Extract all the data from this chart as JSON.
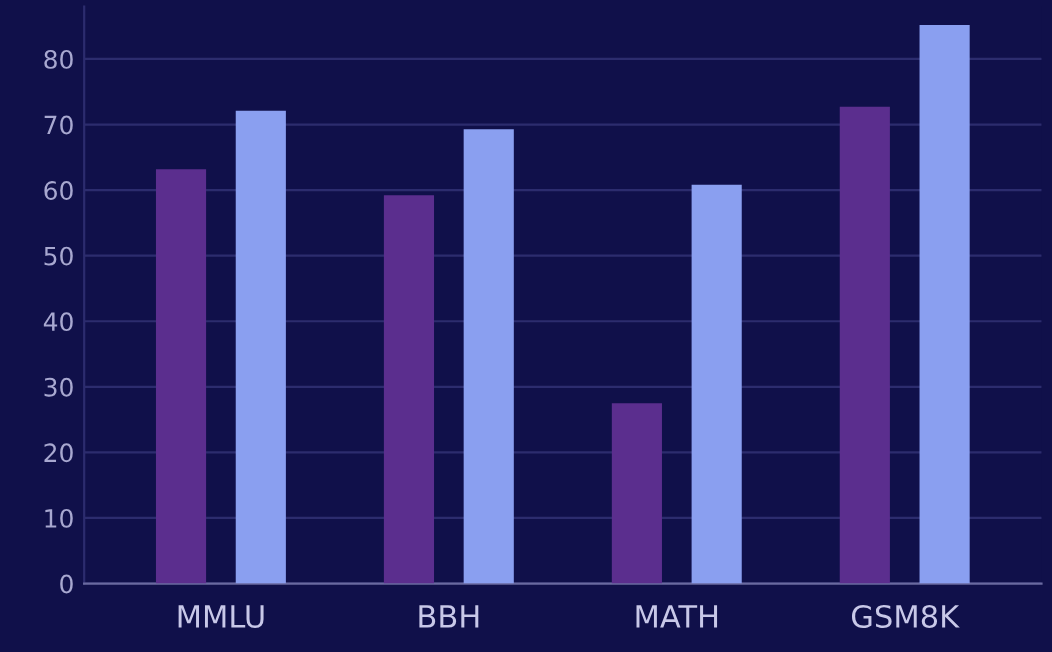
{
  "chart_data": {
    "type": "bar",
    "categories": [
      "MMLU",
      "BBH",
      "MATH",
      "GSM8K"
    ],
    "series": [
      {
        "color": "#5b2e8e",
        "values": [
          63.2,
          59.2,
          27.5,
          72.7
        ]
      },
      {
        "color": "#8a9ff0",
        "values": [
          72.1,
          69.3,
          60.8,
          85.2
        ]
      }
    ],
    "ylim": [
      0,
      88
    ],
    "yticks": [
      0,
      10,
      20,
      30,
      40,
      50,
      60,
      70,
      80
    ],
    "grid": "y",
    "legend": false
  }
}
